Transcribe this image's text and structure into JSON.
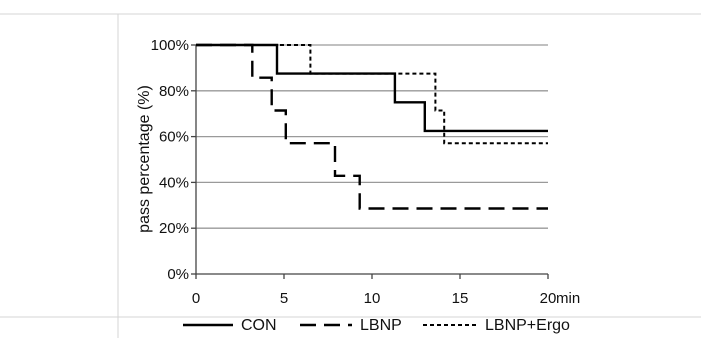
{
  "chart_data": {
    "type": "line",
    "step": true,
    "xlabel": "",
    "x_unit": "min",
    "ylabel": "pass percentage (%)",
    "xlim": [
      0,
      20
    ],
    "ylim": [
      0,
      100
    ],
    "x_ticks": [
      0,
      5,
      10,
      15,
      20
    ],
    "x_tick_labels": [
      "0",
      "5",
      "10",
      "15",
      "20"
    ],
    "y_ticks": [
      0,
      20,
      40,
      60,
      80,
      100
    ],
    "y_tick_labels": [
      "0%",
      "20%",
      "40%",
      "60%",
      "80%",
      "100%"
    ],
    "grid": "horizontal",
    "legend_position": "bottom",
    "series": [
      {
        "name": "CON",
        "style": "solid",
        "color": "#000000",
        "x": [
          0,
          4.6,
          4.6,
          11.3,
          11.3,
          13.0,
          13.0,
          20
        ],
        "y": [
          100,
          100,
          87.5,
          87.5,
          75,
          75,
          62.5,
          62.5
        ]
      },
      {
        "name": "LBNP",
        "style": "long-dash",
        "color": "#000000",
        "x": [
          0,
          3.2,
          3.2,
          4.3,
          4.3,
          5.1,
          5.1,
          7.9,
          7.9,
          9.3,
          9.3,
          20
        ],
        "y": [
          100,
          100,
          85.7,
          85.7,
          71.4,
          71.4,
          57.1,
          57.1,
          42.9,
          42.9,
          28.6,
          28.6
        ]
      },
      {
        "name": "LBNP+Ergo",
        "style": "short-dash",
        "color": "#000000",
        "x": [
          0,
          6.5,
          6.5,
          13.6,
          13.6,
          14.1,
          14.1,
          20
        ],
        "y": [
          100,
          100,
          87.5,
          87.5,
          71.4,
          71.4,
          57.1,
          57.1
        ]
      }
    ]
  }
}
